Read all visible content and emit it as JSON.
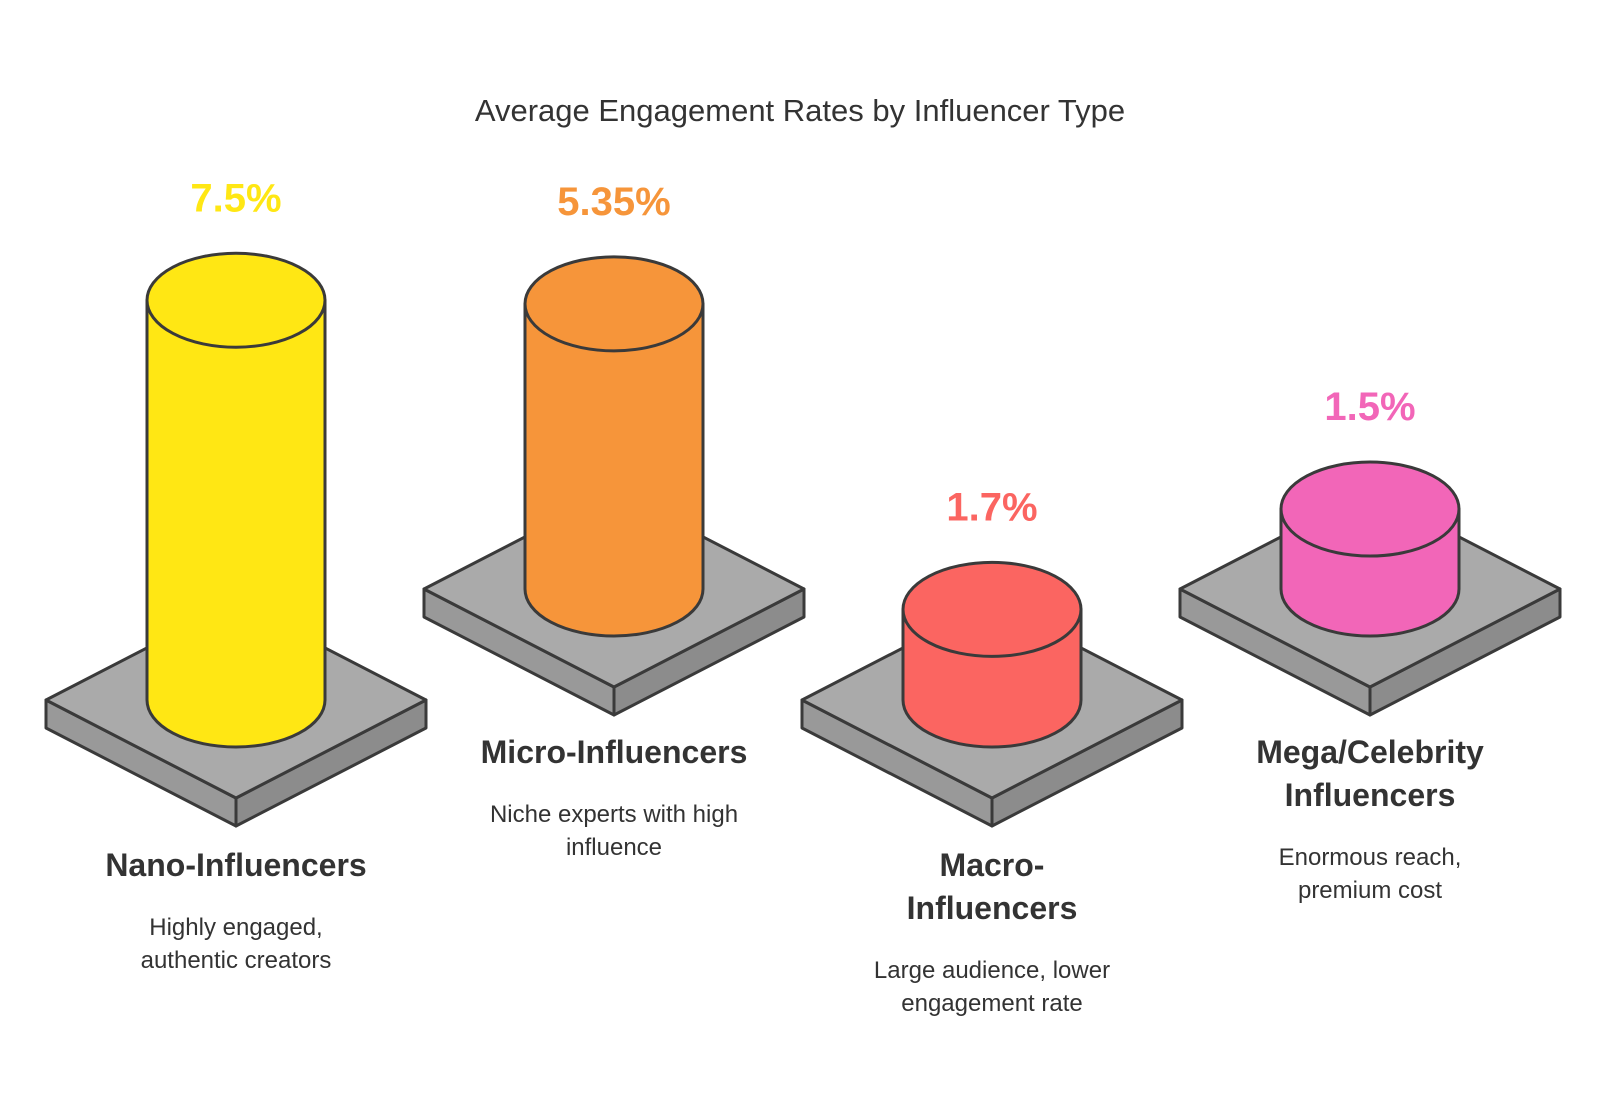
{
  "chart_data": {
    "type": "bar",
    "title": "Average Engagement Rates by Influencer Type",
    "xlabel": "",
    "ylabel": "",
    "unit": "%",
    "categories": [
      {
        "name_lines": [
          "Nano-Influencers"
        ],
        "description_lines": [
          "Highly engaged,",
          "authentic creators"
        ],
        "value": 7.5,
        "value_label": "7.5%",
        "color": "#FFE714"
      },
      {
        "name_lines": [
          "Micro-Influencers"
        ],
        "description_lines": [
          "Niche experts with high",
          "influence"
        ],
        "value": 5.35,
        "value_label": "5.35%",
        "color": "#F6953A"
      },
      {
        "name_lines": [
          "Macro-",
          "Influencers"
        ],
        "description_lines": [
          "Large audience, lower",
          "engagement rate"
        ],
        "value": 1.7,
        "value_label": "1.7%",
        "color": "#FB6561"
      },
      {
        "name_lines": [
          "Mega/Celebrity",
          "Influencers"
        ],
        "description_lines": [
          "Enormous reach,",
          "premium cost"
        ],
        "value": 1.5,
        "value_label": "1.5%",
        "color": "#F266B8"
      }
    ],
    "platform_color": "#AAAAAA",
    "outline_color": "#3A3A3A"
  }
}
